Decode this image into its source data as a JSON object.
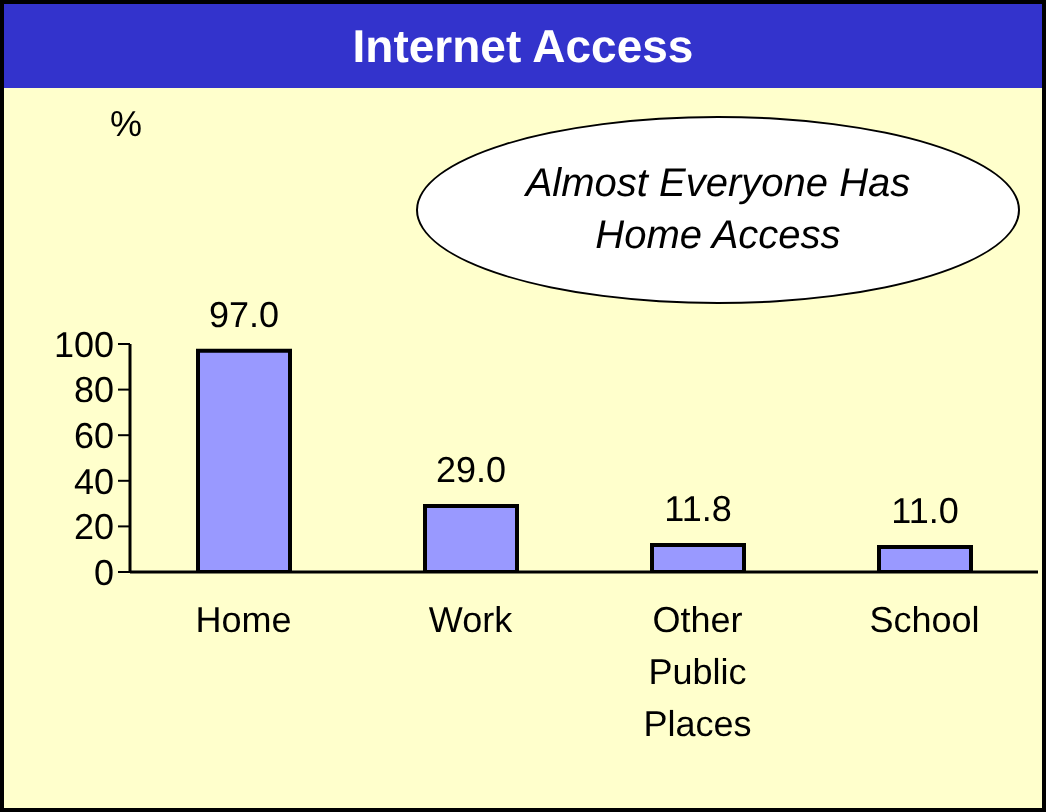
{
  "chart_data": {
    "type": "bar",
    "title": "Internet Access",
    "categories": [
      "Home",
      "Work",
      "Other Public Places",
      "School"
    ],
    "values": [
      97.0,
      29.0,
      11.8,
      11.0
    ],
    "value_labels": [
      "97.0",
      "29.0",
      "11.8",
      "11.0"
    ],
    "color": "#9999ff",
    "ylim": [
      0,
      100
    ],
    "yticks": [
      0,
      20,
      40,
      60,
      80,
      100
    ],
    "grid": false,
    "annotations": [
      "%",
      "Almost Everyone Has Home Access"
    ]
  }
}
